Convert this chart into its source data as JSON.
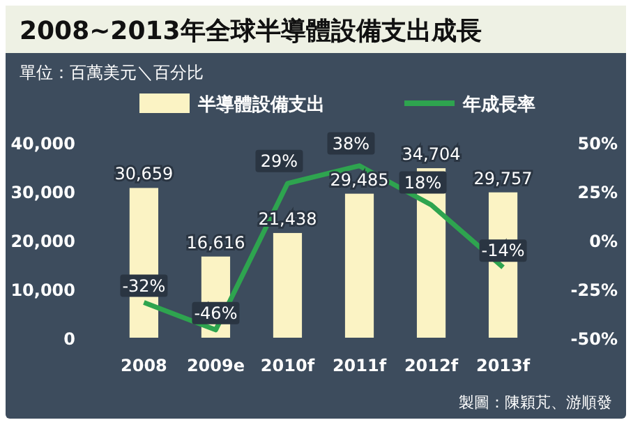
{
  "chart_data": {
    "type": "bar",
    "title": "2008~2013年全球半導體設備支出成長",
    "subtitle": "單位：百萬美元＼百分比",
    "categories": [
      "2008",
      "2009e",
      "2010f",
      "2011f",
      "2012f",
      "2013f"
    ],
    "series": [
      {
        "name": "半導體設備支出",
        "color": "#fbf3c4",
        "values": [
          30659,
          16616,
          21438,
          29485,
          34704,
          29757
        ],
        "value_labels": [
          "30,659",
          "16,616",
          "21,438",
          "29,485",
          "34,704",
          "29,757"
        ]
      },
      {
        "name": "年成長率",
        "type": "line",
        "axis": "y2",
        "color": "#2ea44f",
        "values": [
          -32,
          -46,
          29,
          38,
          18,
          -14
        ],
        "value_labels": [
          "-32%",
          "-46%",
          "29%",
          "38%",
          "18%",
          "-14%"
        ]
      }
    ],
    "ylim": [
      0,
      40000
    ],
    "yticks": [
      0,
      {
        "value": 10000,
        "label": "10,000"
      },
      {
        "value": 20000,
        "label": "20,000"
      },
      {
        "value": 30000,
        "label": "30,000"
      },
      {
        "value": 40000,
        "label": "40,000"
      }
    ],
    "y2lim": [
      -50,
      50
    ],
    "y2ticks": [
      {
        "value": -50,
        "label": "-50%"
      },
      {
        "value": -25,
        "label": "-25%"
      },
      {
        "value": 0,
        "label": "0%"
      },
      {
        "value": 25,
        "label": "25%"
      },
      {
        "value": 50,
        "label": "50%"
      }
    ],
    "legend": "top",
    "grid": false,
    "marker": "none",
    "annotations": [
      "製圖：陳穎芃、游順發"
    ]
  }
}
